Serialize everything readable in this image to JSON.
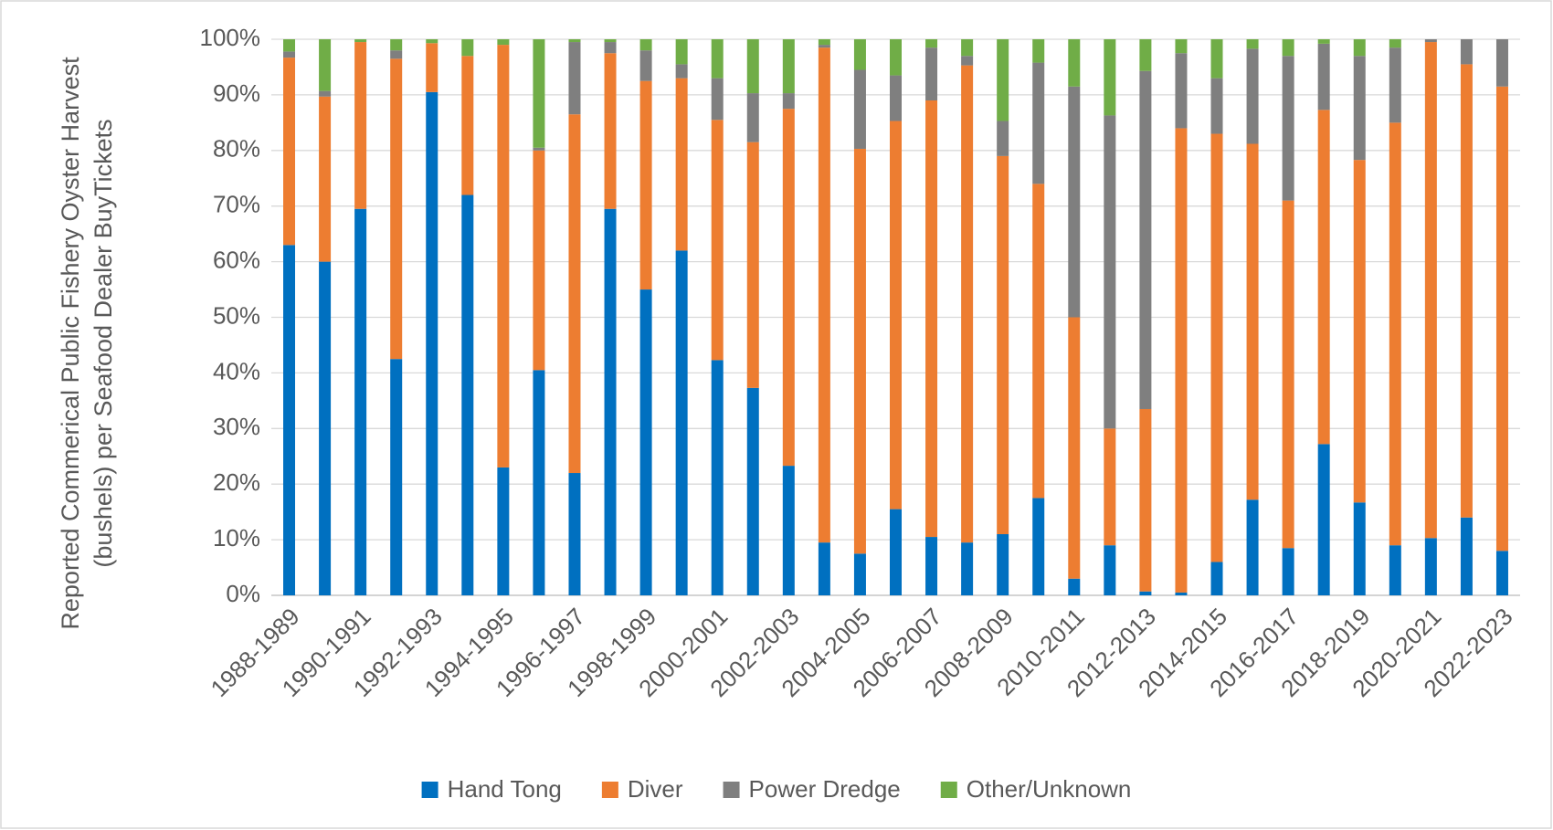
{
  "chart_data": {
    "type": "stacked_bar",
    "ylabel": "Reported Commerical Public Fishery Oyster Harvest (bushels) per Seafood Dealer BuyTickets",
    "categories": [
      "1988-1989",
      null,
      "1990-1991",
      null,
      "1992-1993",
      null,
      "1994-1995",
      null,
      "1996-1997",
      null,
      "1998-1999",
      null,
      "2000-2001",
      null,
      "2002-2003",
      null,
      "2004-2005",
      null,
      "2006-2007",
      null,
      "2008-2009",
      null,
      "2010-2011",
      null,
      "2012-2013",
      null,
      "2014-2015",
      null,
      "2016-2017",
      null,
      "2018-2019",
      null,
      "2020-2021",
      null,
      "2022-2023"
    ],
    "series": [
      {
        "name": "Hand Tong",
        "color": "#0070c0",
        "values": [
          63,
          60,
          69.5,
          42.5,
          90.5,
          72,
          23,
          40.5,
          22,
          69.5,
          55,
          62,
          42.3,
          37.3,
          23.3,
          9.5,
          7.5,
          15.5,
          10.5,
          9.5,
          11,
          17.5,
          3,
          9,
          0.7,
          0.5,
          6,
          17.2,
          8.5,
          27.2,
          16.7,
          9,
          10.3,
          14,
          8
        ]
      },
      {
        "name": "Diver",
        "color": "#ed7d31",
        "values": [
          33.7,
          29.7,
          30,
          54,
          8.8,
          25,
          76,
          39.5,
          64.5,
          28,
          37.5,
          31,
          43.2,
          44.2,
          64.2,
          89,
          72.8,
          69.8,
          78.5,
          85.8,
          68,
          56.5,
          47,
          21,
          32.8,
          83.5,
          77,
          64,
          62.5,
          60.1,
          61.6,
          76,
          89.2,
          81.5,
          83.5
        ]
      },
      {
        "name": "Power Dredge",
        "color": "#7f7f7f",
        "values": [
          1.1,
          1,
          0,
          1.5,
          0,
          0,
          0,
          0.5,
          13,
          2,
          5.5,
          2.5,
          7.5,
          8.8,
          2.8,
          0.5,
          14.2,
          8.2,
          9.5,
          1.7,
          6.3,
          21.8,
          41.5,
          56.3,
          60.8,
          13.5,
          10,
          17.1,
          26,
          11.9,
          18.7,
          13.5,
          0.5,
          4.5,
          8.5
        ]
      },
      {
        "name": "Other/Unknown",
        "color": "#70ad47",
        "values": [
          2.2,
          9.3,
          0.5,
          2,
          0.7,
          3,
          1,
          19.5,
          0.5,
          0.5,
          2,
          4.5,
          7,
          9.7,
          9.7,
          1,
          5.5,
          6.5,
          1.5,
          3,
          14.7,
          4.2,
          8.5,
          13.7,
          5.7,
          2.5,
          7,
          1.7,
          3,
          0.8,
          3,
          1.5,
          0,
          0,
          0
        ]
      }
    ],
    "ylim": [
      0,
      100
    ],
    "yticks": [
      {
        "value": 0,
        "label": "0%"
      },
      {
        "value": 10,
        "label": "10%"
      },
      {
        "value": 20,
        "label": "20%"
      },
      {
        "value": 30,
        "label": "30%"
      },
      {
        "value": 40,
        "label": "40%"
      },
      {
        "value": 50,
        "label": "50%"
      },
      {
        "value": 60,
        "label": "60%"
      },
      {
        "value": 70,
        "label": "70%"
      },
      {
        "value": 80,
        "label": "80%"
      },
      {
        "value": 90,
        "label": "90%"
      },
      {
        "value": 100,
        "label": "100%"
      }
    ],
    "grid": true,
    "legend": "bottom"
  }
}
